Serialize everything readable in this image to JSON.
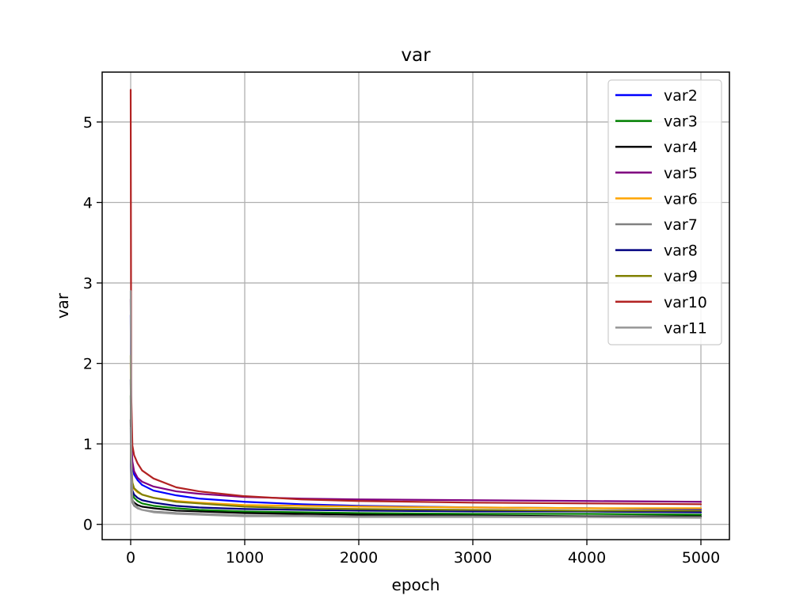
{
  "chart_data": {
    "type": "line",
    "title": "var",
    "xlabel": "epoch",
    "ylabel": "var",
    "xlim": [
      -250,
      5250
    ],
    "ylim": [
      -0.19,
      5.62
    ],
    "xticks": [
      0,
      1000,
      2000,
      3000,
      4000,
      5000
    ],
    "yticks": [
      0,
      1,
      2,
      3,
      4,
      5
    ],
    "grid": true,
    "legend_position": "top-right",
    "series": [
      {
        "name": "var2",
        "color": "#0000ff",
        "points": [
          [
            0,
            2.6
          ],
          [
            5,
            1.0
          ],
          [
            15,
            0.72
          ],
          [
            30,
            0.62
          ],
          [
            60,
            0.55
          ],
          [
            100,
            0.49
          ],
          [
            200,
            0.42
          ],
          [
            400,
            0.36
          ],
          [
            600,
            0.32
          ],
          [
            1000,
            0.28
          ],
          [
            1500,
            0.25
          ],
          [
            2000,
            0.23
          ],
          [
            3000,
            0.21
          ],
          [
            4000,
            0.2
          ],
          [
            5000,
            0.19
          ]
        ]
      },
      {
        "name": "var3",
        "color": "#008000",
        "points": [
          [
            0,
            1.6
          ],
          [
            5,
            0.6
          ],
          [
            15,
            0.38
          ],
          [
            30,
            0.33
          ],
          [
            60,
            0.29
          ],
          [
            100,
            0.26
          ],
          [
            200,
            0.23
          ],
          [
            400,
            0.2
          ],
          [
            600,
            0.18
          ],
          [
            1000,
            0.16
          ],
          [
            1500,
            0.15
          ],
          [
            2000,
            0.14
          ],
          [
            3000,
            0.13
          ],
          [
            4000,
            0.13
          ],
          [
            5000,
            0.12
          ]
        ]
      },
      {
        "name": "var4",
        "color": "#000000",
        "points": [
          [
            0,
            1.3
          ],
          [
            5,
            0.45
          ],
          [
            15,
            0.3
          ],
          [
            30,
            0.27
          ],
          [
            60,
            0.24
          ],
          [
            100,
            0.22
          ],
          [
            200,
            0.2
          ],
          [
            400,
            0.17
          ],
          [
            600,
            0.16
          ],
          [
            1000,
            0.14
          ],
          [
            1500,
            0.13
          ],
          [
            2000,
            0.12
          ],
          [
            3000,
            0.11
          ],
          [
            4000,
            0.1
          ],
          [
            5000,
            0.1
          ]
        ]
      },
      {
        "name": "var5",
        "color": "#800080",
        "points": [
          [
            0,
            2.8
          ],
          [
            5,
            1.1
          ],
          [
            15,
            0.78
          ],
          [
            30,
            0.66
          ],
          [
            60,
            0.58
          ],
          [
            100,
            0.53
          ],
          [
            200,
            0.47
          ],
          [
            400,
            0.41
          ],
          [
            600,
            0.38
          ],
          [
            1000,
            0.34
          ],
          [
            1500,
            0.32
          ],
          [
            2000,
            0.31
          ],
          [
            3000,
            0.3
          ],
          [
            4000,
            0.29
          ],
          [
            5000,
            0.28
          ]
        ]
      },
      {
        "name": "var6",
        "color": "#ffa500",
        "points": [
          [
            0,
            2.0
          ],
          [
            5,
            0.8
          ],
          [
            15,
            0.5
          ],
          [
            30,
            0.44
          ],
          [
            60,
            0.4
          ],
          [
            100,
            0.37
          ],
          [
            200,
            0.33
          ],
          [
            400,
            0.29
          ],
          [
            600,
            0.27
          ],
          [
            1000,
            0.24
          ],
          [
            1500,
            0.23
          ],
          [
            2000,
            0.22
          ],
          [
            3000,
            0.21
          ],
          [
            4000,
            0.2
          ],
          [
            5000,
            0.2
          ]
        ]
      },
      {
        "name": "var7",
        "color": "#808080",
        "points": [
          [
            0,
            1.2
          ],
          [
            5,
            0.4
          ],
          [
            15,
            0.27
          ],
          [
            30,
            0.23
          ],
          [
            60,
            0.2
          ],
          [
            100,
            0.18
          ],
          [
            200,
            0.16
          ],
          [
            400,
            0.14
          ],
          [
            600,
            0.13
          ],
          [
            1000,
            0.11
          ],
          [
            1500,
            0.11
          ],
          [
            2000,
            0.1
          ],
          [
            3000,
            0.1
          ],
          [
            4000,
            0.09
          ],
          [
            5000,
            0.09
          ]
        ]
      },
      {
        "name": "var8",
        "color": "#000080",
        "points": [
          [
            0,
            1.8
          ],
          [
            5,
            0.7
          ],
          [
            15,
            0.42
          ],
          [
            30,
            0.37
          ],
          [
            60,
            0.33
          ],
          [
            100,
            0.3
          ],
          [
            200,
            0.27
          ],
          [
            400,
            0.23
          ],
          [
            600,
            0.21
          ],
          [
            1000,
            0.19
          ],
          [
            1500,
            0.18
          ],
          [
            2000,
            0.17
          ],
          [
            3000,
            0.16
          ],
          [
            4000,
            0.16
          ],
          [
            5000,
            0.15
          ]
        ]
      },
      {
        "name": "var9",
        "color": "#808000",
        "points": [
          [
            0,
            2.1
          ],
          [
            5,
            0.82
          ],
          [
            15,
            0.52
          ],
          [
            30,
            0.45
          ],
          [
            60,
            0.41
          ],
          [
            100,
            0.37
          ],
          [
            200,
            0.33
          ],
          [
            400,
            0.28
          ],
          [
            600,
            0.26
          ],
          [
            1000,
            0.22
          ],
          [
            1500,
            0.2
          ],
          [
            2000,
            0.19
          ],
          [
            3000,
            0.18
          ],
          [
            4000,
            0.17
          ],
          [
            5000,
            0.17
          ]
        ]
      },
      {
        "name": "var10",
        "color": "#b22222",
        "points": [
          [
            0,
            5.4
          ],
          [
            5,
            1.6
          ],
          [
            15,
            0.98
          ],
          [
            30,
            0.86
          ],
          [
            60,
            0.76
          ],
          [
            100,
            0.67
          ],
          [
            200,
            0.57
          ],
          [
            400,
            0.46
          ],
          [
            600,
            0.41
          ],
          [
            1000,
            0.35
          ],
          [
            1500,
            0.31
          ],
          [
            2000,
            0.29
          ],
          [
            3000,
            0.27
          ],
          [
            4000,
            0.26
          ],
          [
            5000,
            0.25
          ]
        ]
      },
      {
        "name": "var11",
        "color": "#969696",
        "points": [
          [
            0,
            2.9
          ],
          [
            5,
            0.9
          ],
          [
            15,
            0.3
          ],
          [
            30,
            0.25
          ],
          [
            60,
            0.21
          ],
          [
            100,
            0.18
          ],
          [
            200,
            0.15
          ],
          [
            400,
            0.13
          ],
          [
            600,
            0.12
          ],
          [
            1000,
            0.1
          ],
          [
            1500,
            0.1
          ],
          [
            2000,
            0.09
          ],
          [
            3000,
            0.09
          ],
          [
            4000,
            0.09
          ],
          [
            5000,
            0.08
          ]
        ]
      }
    ]
  }
}
